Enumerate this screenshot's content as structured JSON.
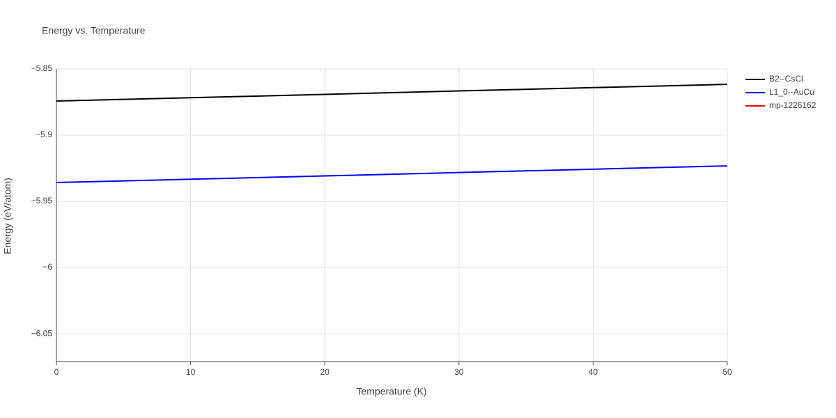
{
  "chart_data": {
    "type": "line",
    "title": "Energy vs. Temperature",
    "x_label": "Temperature (K)",
    "y_label": "Energy (eV/atom)",
    "x": [
      0,
      10,
      20,
      30,
      40,
      50
    ],
    "series": [
      {
        "name": "B2--CsCl",
        "color": "#000000",
        "values": [
          -5.8742,
          -5.8717,
          -5.8692,
          -5.8666,
          -5.8641,
          -5.8616
        ]
      },
      {
        "name": "L1_0--AuCu",
        "color": "#0000ff",
        "values": [
          -5.9358,
          -5.9333,
          -5.9308,
          -5.9282,
          -5.9257,
          -5.9232
        ]
      },
      {
        "name": "mp-1226162",
        "color": "#ff0000",
        "values": [
          null,
          null,
          null,
          null,
          null,
          null
        ]
      }
    ],
    "xlim": [
      0,
      50
    ],
    "xticks": [
      0,
      10,
      20,
      30,
      40,
      50
    ],
    "ylim": [
      -6.071,
      -5.85
    ],
    "yticks": [
      {
        "value": -5.85,
        "label": "−5.85"
      },
      {
        "value": -5.9,
        "label": "−5.9"
      },
      {
        "value": -5.95,
        "label": "−5.95"
      },
      {
        "value": -6,
        "label": "−6"
      },
      {
        "value": -6.05,
        "label": "−6.05"
      }
    ],
    "grid": true,
    "legend": "right"
  }
}
